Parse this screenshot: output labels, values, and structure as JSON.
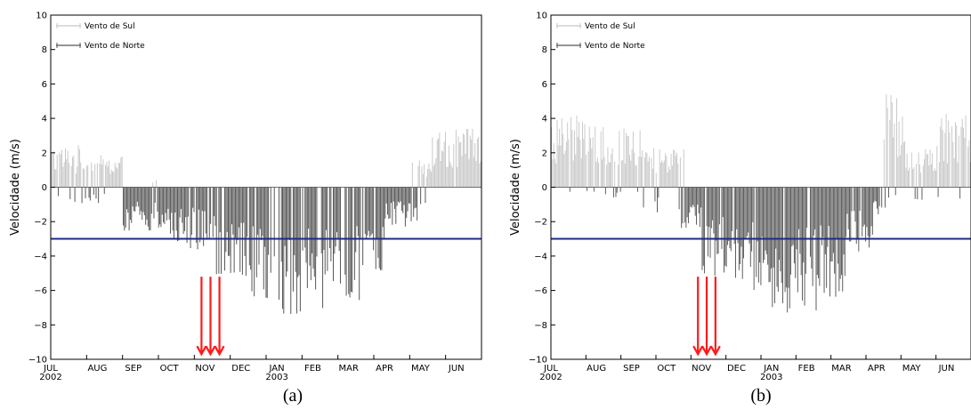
{
  "chart_data": [
    {
      "type": "bar",
      "caption": "(a)",
      "ylabel": "Velocidade  (m/s)",
      "ylim": [
        -10,
        10
      ],
      "yticks": [
        -10,
        -8,
        -6,
        -4,
        -2,
        0,
        2,
        4,
        6,
        8,
        10
      ],
      "ytick_labels": [
        "−10",
        "−8",
        "−6",
        "−4",
        "−2",
        "0",
        "2",
        "4",
        "6",
        "8",
        "10"
      ],
      "xticks": [
        "JUL",
        "AUG",
        "SEP",
        "OCT",
        "NOV",
        "DEC",
        "JAN",
        "FEB",
        "MAR",
        "APR",
        "MAY",
        "JUN"
      ],
      "xtick_years": {
        "JUL": "2002",
        "JAN": "2003"
      },
      "legend": [
        "Vento de Sul",
        "Vento de Norte"
      ],
      "threshold": -3,
      "arrow_months": [
        4.2,
        4.45,
        4.7
      ],
      "series": [
        {
          "name": "Vento de Sul",
          "color": "#c8c8c8",
          "segments": [
            [
              0,
              0.9,
              1.6
            ],
            [
              0.9,
              2.0,
              1.2
            ],
            [
              2.0,
              3.2,
              0.5
            ],
            [
              10.0,
              10.6,
              1.0
            ],
            [
              10.6,
              12.0,
              2.2
            ]
          ]
        },
        {
          "name": "Vento de Norte",
          "color": "#555555",
          "segments": [
            [
              0,
              2.0,
              -0.6
            ],
            [
              2.0,
              3.3,
              -1.7
            ],
            [
              3.3,
              4.3,
              -2.4
            ],
            [
              4.3,
              5.4,
              -3.4
            ],
            [
              5.4,
              6.2,
              -4.2
            ],
            [
              6.2,
              7.8,
              -4.8
            ],
            [
              7.8,
              8.6,
              -4.3
            ],
            [
              8.6,
              9.3,
              -3.2
            ],
            [
              9.3,
              10.2,
              -1.5
            ],
            [
              10.2,
              11.0,
              -0.7
            ],
            [
              11.0,
              12.0,
              -0.4
            ]
          ]
        }
      ]
    },
    {
      "type": "bar",
      "caption": "(b)",
      "ylabel": "Velocidade  (m/s)",
      "ylim": [
        -10,
        10
      ],
      "yticks": [
        -10,
        -8,
        -6,
        -4,
        -2,
        0,
        2,
        4,
        6,
        8,
        10
      ],
      "ytick_labels": [
        "−10",
        "−8",
        "−6",
        "−4",
        "−2",
        "0",
        "2",
        "4",
        "6",
        "8",
        "10"
      ],
      "xticks": [
        "JUL",
        "AUG",
        "SEP",
        "OCT",
        "NOV",
        "DEC",
        "JAN",
        "FEB",
        "MAR",
        "APR",
        "MAY",
        "JUN"
      ],
      "xtick_years": {
        "JUL": "2002",
        "JAN": "2003"
      },
      "legend": [
        "Vento de Sul",
        "Vento de Norte"
      ],
      "threshold": -3,
      "arrow_months": [
        4.2,
        4.45,
        4.7
      ],
      "series": [
        {
          "name": "Vento de Sul",
          "color": "#c8c8c8",
          "segments": [
            [
              0,
              1.2,
              2.8
            ],
            [
              1.2,
              2.6,
              2.3
            ],
            [
              2.6,
              3.8,
              1.5
            ],
            [
              3.8,
              4.2,
              0.8
            ],
            [
              9.5,
              10.1,
              3.5
            ],
            [
              10.1,
              11.0,
              1.5
            ],
            [
              11.0,
              12.0,
              2.8
            ]
          ]
        },
        {
          "name": "Vento de Norte",
          "color": "#555555",
          "segments": [
            [
              0.3,
              2.6,
              -0.4
            ],
            [
              2.6,
              3.6,
              -1.0
            ],
            [
              3.6,
              4.3,
              -1.8
            ],
            [
              4.3,
              5.3,
              -3.4
            ],
            [
              5.3,
              6.1,
              -4.0
            ],
            [
              6.1,
              7.6,
              -4.7
            ],
            [
              7.6,
              8.4,
              -4.2
            ],
            [
              8.4,
              9.2,
              -2.6
            ],
            [
              9.2,
              9.6,
              -1.2
            ],
            [
              9.6,
              12.0,
              -0.5
            ]
          ]
        }
      ]
    }
  ]
}
